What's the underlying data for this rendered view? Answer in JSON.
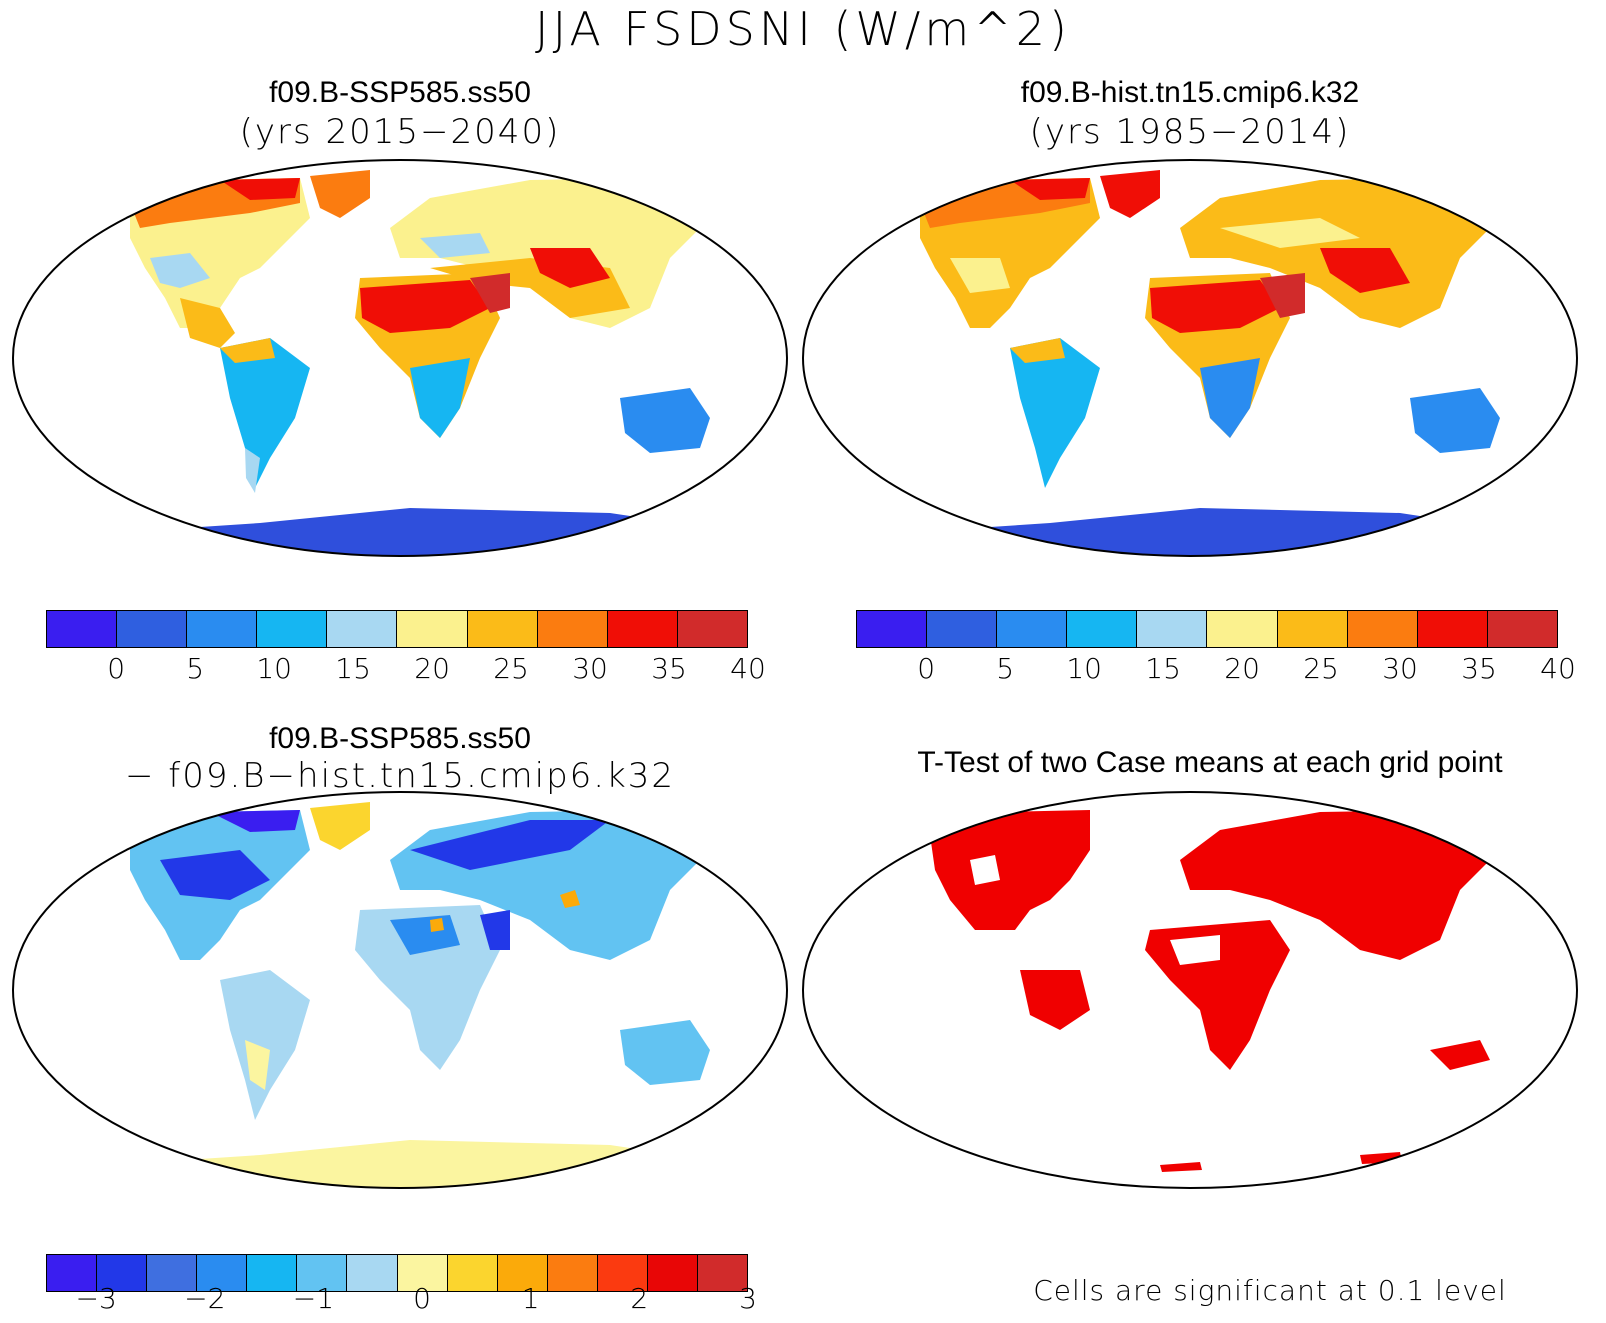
{
  "figure": {
    "title": "JJA FSDSNI (W/m^2)"
  },
  "panels": {
    "top_left": {
      "title": "f09.B-SSP585.ss50",
      "subtitle": "(yrs 2015−2040)"
    },
    "top_right": {
      "title": "f09.B-hist.tn15.cmip6.k32",
      "subtitle": "(yrs 1985−2014)"
    },
    "bottom_left": {
      "title": "f09.B-SSP585.ss50",
      "subtitle": "− f09.B−hist.tn15.cmip6.k32"
    },
    "bottom_right": {
      "title": "T-Test of two Case means at each grid point",
      "note": "Cells are significant at 0.1 level"
    }
  },
  "colorbars": {
    "absolute": {
      "colors": [
        "#3a1ef0",
        "#2f5fe0",
        "#2a8cf0",
        "#16b6f2",
        "#a8d8f2",
        "#fbf18e",
        "#fbbb18",
        "#fb7c10",
        "#f00e06",
        "#d12b2b"
      ],
      "tick_labels": [
        "0",
        "5",
        "10",
        "15",
        "20",
        "25",
        "30",
        "35",
        "40"
      ]
    },
    "difference": {
      "colors": [
        "#3a1ef0",
        "#2238e8",
        "#3f6fe0",
        "#2a8cf0",
        "#16b6f2",
        "#62c3f2",
        "#a8d8f2",
        "#fbf5a0",
        "#fbd52e",
        "#fbaa0a",
        "#fb7c10",
        "#fb3a10",
        "#e80606",
        "#d12b2b"
      ],
      "tick_labels": [
        "−3",
        "−2",
        "−1",
        "0",
        "1",
        "2",
        "3"
      ]
    }
  },
  "colors": {
    "significance_fill": "#f00000",
    "antarctica_abs": "#2f4fdc",
    "antarctica_diff": "#fbf5a0"
  }
}
